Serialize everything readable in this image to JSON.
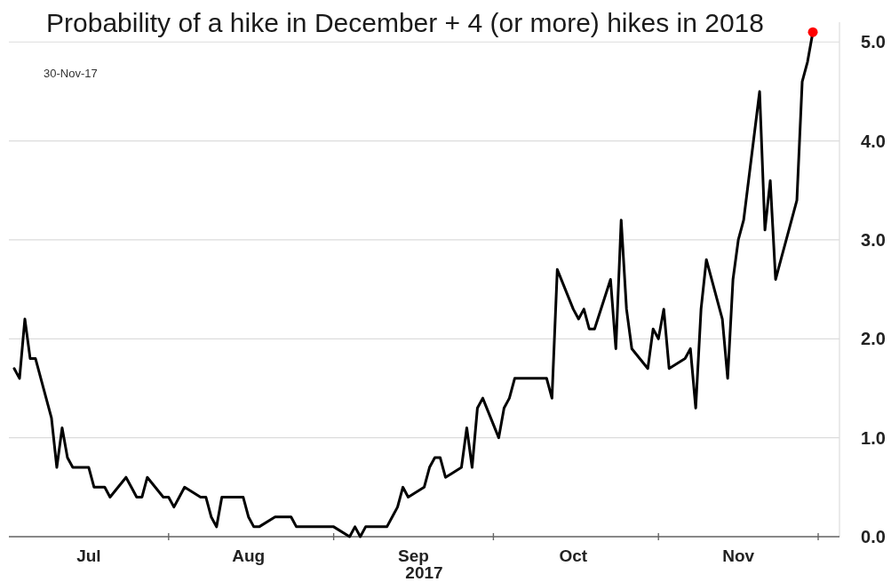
{
  "chart_data": {
    "type": "line",
    "title": "Probability of a hike in December + 4 (or more) hikes in 2018",
    "xlabel": "2017",
    "annotations": [
      "30-Nov-17"
    ],
    "x": [
      "2017-07-03",
      "2017-07-04",
      "2017-07-05",
      "2017-07-06",
      "2017-07-07",
      "2017-07-10",
      "2017-07-11",
      "2017-07-12",
      "2017-07-13",
      "2017-07-14",
      "2017-07-17",
      "2017-07-18",
      "2017-07-19",
      "2017-07-20",
      "2017-07-21",
      "2017-07-24",
      "2017-07-25",
      "2017-07-26",
      "2017-07-27",
      "2017-07-28",
      "2017-07-31",
      "2017-08-01",
      "2017-08-02",
      "2017-08-03",
      "2017-08-04",
      "2017-08-07",
      "2017-08-08",
      "2017-08-09",
      "2017-08-10",
      "2017-08-11",
      "2017-08-14",
      "2017-08-15",
      "2017-08-16",
      "2017-08-17",
      "2017-08-18",
      "2017-08-21",
      "2017-08-22",
      "2017-08-23",
      "2017-08-24",
      "2017-08-25",
      "2017-08-28",
      "2017-08-29",
      "2017-08-30",
      "2017-08-31",
      "2017-09-01",
      "2017-09-04",
      "2017-09-05",
      "2017-09-06",
      "2017-09-07",
      "2017-09-08",
      "2017-09-11",
      "2017-09-12",
      "2017-09-13",
      "2017-09-14",
      "2017-09-15",
      "2017-09-18",
      "2017-09-19",
      "2017-09-20",
      "2017-09-21",
      "2017-09-22",
      "2017-09-25",
      "2017-09-26",
      "2017-09-27",
      "2017-09-28",
      "2017-09-29",
      "2017-10-02",
      "2017-10-03",
      "2017-10-04",
      "2017-10-05",
      "2017-10-06",
      "2017-10-09",
      "2017-10-10",
      "2017-10-11",
      "2017-10-12",
      "2017-10-13",
      "2017-10-16",
      "2017-10-17",
      "2017-10-18",
      "2017-10-19",
      "2017-10-20",
      "2017-10-23",
      "2017-10-24",
      "2017-10-25",
      "2017-10-26",
      "2017-10-27",
      "2017-10-30",
      "2017-10-31",
      "2017-11-01",
      "2017-11-02",
      "2017-11-03",
      "2017-11-06",
      "2017-11-07",
      "2017-11-08",
      "2017-11-09",
      "2017-11-10",
      "2017-11-13",
      "2017-11-14",
      "2017-11-15",
      "2017-11-16",
      "2017-11-17",
      "2017-11-20",
      "2017-11-21",
      "2017-11-22",
      "2017-11-23",
      "2017-11-24",
      "2017-11-27",
      "2017-11-28",
      "2017-11-29",
      "2017-11-30"
    ],
    "series": [
      {
        "color": "#000000",
        "values": [
          1.7,
          1.6,
          2.2,
          1.8,
          1.8,
          1.2,
          0.7,
          1.1,
          0.8,
          0.7,
          0.7,
          0.5,
          0.5,
          0.5,
          0.4,
          0.6,
          0.5,
          0.4,
          0.4,
          0.6,
          0.4,
          0.4,
          0.3,
          0.4,
          0.5,
          0.4,
          0.4,
          0.2,
          0.1,
          0.4,
          0.4,
          0.4,
          0.2,
          0.1,
          0.1,
          0.2,
          0.2,
          0.2,
          0.2,
          0.1,
          0.1,
          0.1,
          0.1,
          0.1,
          0.1,
          0.0,
          0.1,
          0.0,
          0.1,
          0.1,
          0.1,
          0.2,
          0.3,
          0.5,
          0.4,
          0.5,
          0.7,
          0.8,
          0.8,
          0.6,
          0.7,
          1.1,
          0.7,
          1.3,
          1.4,
          1.0,
          1.3,
          1.4,
          1.6,
          1.6,
          1.6,
          1.6,
          1.6,
          1.4,
          2.7,
          2.3,
          2.2,
          2.3,
          2.1,
          2.1,
          2.6,
          1.9,
          3.2,
          2.3,
          1.9,
          1.7,
          2.1,
          2.0,
          2.3,
          1.7,
          1.8,
          1.9,
          1.3,
          2.3,
          2.8,
          2.2,
          1.6,
          2.6,
          3.0,
          3.2,
          4.5,
          3.1,
          3.6,
          2.6,
          2.8,
          3.4,
          4.6,
          4.8,
          5.1
        ]
      },
      {
        "type": "scatter",
        "x": [
          "2017-11-30"
        ],
        "color": "#ff0000",
        "marker": "circle",
        "values": [
          5.1
        ]
      }
    ],
    "xlim": [
      "2017-07-02",
      "2017-12-05"
    ],
    "xticks": [
      {
        "value": "2017-07-17",
        "label": "Jul"
      },
      {
        "value": "2017-08-01",
        "label": null
      },
      {
        "value": "2017-08-16",
        "label": "Aug"
      },
      {
        "value": "2017-09-01",
        "label": null
      },
      {
        "value": "2017-09-16",
        "label": "Sep"
      },
      {
        "value": "2017-10-01",
        "label": null
      },
      {
        "value": "2017-10-16",
        "label": "Oct"
      },
      {
        "value": "2017-11-01",
        "label": null
      },
      {
        "value": "2017-11-16",
        "label": "Nov"
      },
      {
        "value": "2017-12-01",
        "label": null
      }
    ],
    "ylim": [
      0,
      5.2
    ],
    "yticks": [
      {
        "value": 0,
        "label": "0.0"
      },
      {
        "value": 1,
        "label": "1.0"
      },
      {
        "value": 2,
        "label": "2.0"
      },
      {
        "value": 3,
        "label": "3.0"
      },
      {
        "value": 4,
        "label": "4.0"
      },
      {
        "value": 5,
        "label": "5.0"
      }
    ],
    "grid": "y"
  }
}
